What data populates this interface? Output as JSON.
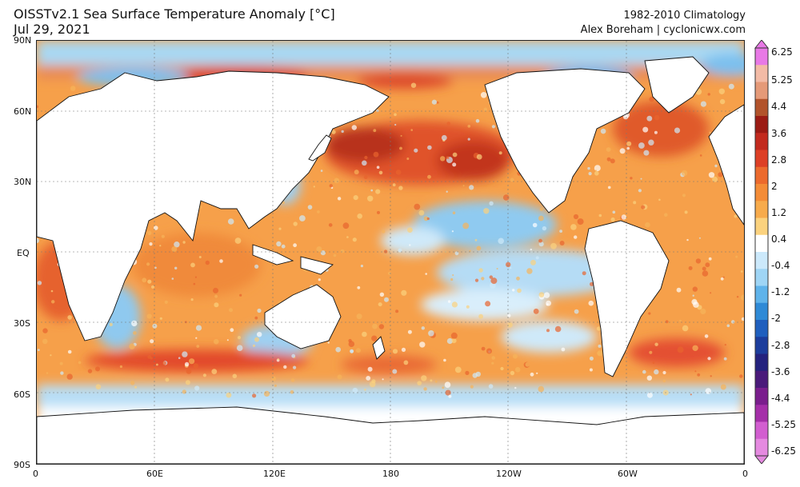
{
  "header": {
    "title_line1": "OISSTv2.1 Sea Surface Temperature Anomaly [°C]",
    "title_line2": "Jul 29, 2021",
    "climatology": "1982-2010 Climatology",
    "credit": "Alex Boreham | cyclonicwx.com"
  },
  "map": {
    "lat_labels": [
      "90N",
      "60N",
      "30N",
      "EQ",
      "30S",
      "60S",
      "90S"
    ],
    "lon_labels": [
      "0",
      "60E",
      "120E",
      "180",
      "120W",
      "60W",
      "0"
    ]
  },
  "colorbar": {
    "labels": [
      "6.25",
      "5.25",
      "4.4",
      "3.6",
      "2.8",
      "2",
      "1.2",
      "0.4",
      "-0.4",
      "-1.2",
      "-2",
      "-2.8",
      "-3.6",
      "-4.4",
      "-5.25",
      "-6.25"
    ],
    "colors": [
      "#e879e6",
      "#f3bba6",
      "#e59a78",
      "#b2532b",
      "#9b1b14",
      "#c22a1e",
      "#dd3f25",
      "#ec6a2d",
      "#f48c37",
      "#f7ab4c",
      "#fbd27e",
      "#ffffff",
      "#cce9fb",
      "#9fd5f5",
      "#5fb3ea",
      "#2f8ad6",
      "#1f5fbe",
      "#1c3d9c",
      "#24227e",
      "#4a1a7a",
      "#7a1e8d",
      "#a52fa9",
      "#d25ed0",
      "#e58ae0"
    ]
  }
}
